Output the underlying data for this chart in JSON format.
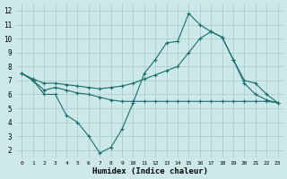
{
  "xlabel": "Humidex (Indice chaleur)",
  "bg_color": "#cce8e8",
  "grid_color": "#aad0d0",
  "line_color": "#1a6e6e",
  "xlim": [
    -0.5,
    23.5
  ],
  "ylim": [
    1.5,
    12.5
  ],
  "xticks": [
    0,
    1,
    2,
    3,
    4,
    5,
    6,
    7,
    8,
    9,
    10,
    11,
    12,
    13,
    14,
    15,
    16,
    17,
    18,
    19,
    20,
    21,
    22,
    23
  ],
  "yticks": [
    2,
    3,
    4,
    5,
    6,
    7,
    8,
    9,
    10,
    11,
    12
  ],
  "series": [
    {
      "x": [
        0,
        1,
        2,
        3,
        4,
        5,
        6,
        7,
        8,
        9,
        10,
        11,
        12,
        13,
        14,
        15,
        16,
        17,
        18,
        19,
        20,
        21,
        22,
        23
      ],
      "y": [
        7.5,
        7.0,
        6.0,
        6.0,
        4.5,
        4.0,
        3.0,
        1.8,
        2.2,
        3.5,
        5.4,
        7.5,
        8.5,
        9.7,
        9.8,
        11.8,
        11.0,
        10.5,
        10.1,
        8.5,
        6.8,
        6.0,
        5.6,
        5.4
      ]
    },
    {
      "x": [
        0,
        1,
        2,
        3,
        4,
        5,
        6,
        7,
        8,
        9,
        10,
        11,
        12,
        13,
        14,
        15,
        16,
        17,
        18,
        19,
        20,
        21,
        22,
        23
      ],
      "y": [
        7.5,
        7.0,
        6.3,
        6.5,
        6.3,
        6.1,
        6.0,
        5.8,
        5.6,
        5.5,
        5.5,
        5.5,
        5.5,
        5.5,
        5.5,
        5.5,
        5.5,
        5.5,
        5.5,
        5.5,
        5.5,
        5.5,
        5.5,
        5.4
      ]
    },
    {
      "x": [
        0,
        1,
        2,
        3,
        4,
        5,
        6,
        7,
        8,
        9,
        10,
        11,
        12,
        13,
        14,
        15,
        16,
        17,
        18,
        19,
        20,
        21,
        22,
        23
      ],
      "y": [
        7.5,
        7.1,
        6.8,
        6.8,
        6.7,
        6.6,
        6.5,
        6.4,
        6.5,
        6.6,
        6.8,
        7.1,
        7.4,
        7.7,
        8.0,
        9.0,
        10.0,
        10.5,
        10.1,
        8.5,
        7.0,
        6.8,
        6.0,
        5.4
      ]
    }
  ]
}
